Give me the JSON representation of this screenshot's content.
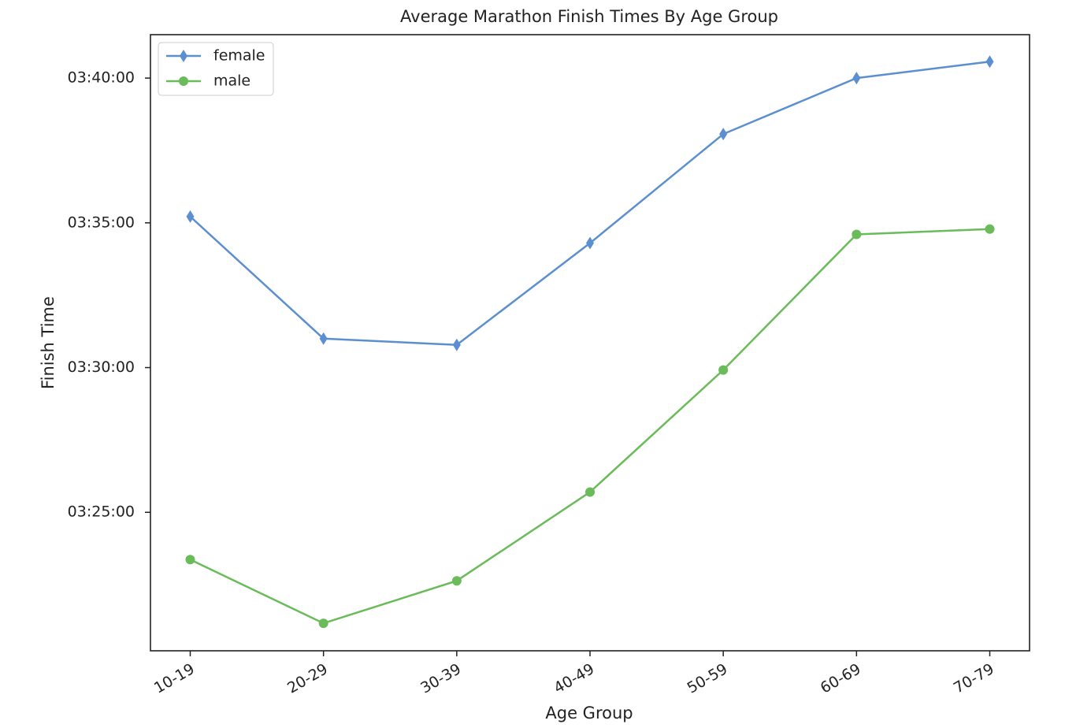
{
  "chart_data": {
    "type": "line",
    "title": "Average Marathon Finish Times By Age Group",
    "x_label": "Age Group",
    "y_label": "Finish Time",
    "categories": [
      "10-19",
      "20-29",
      "30-39",
      "40-49",
      "50-59",
      "60-69",
      "70-79"
    ],
    "series": [
      {
        "name": "female",
        "color": "#5b8fcf",
        "marker": "diamond",
        "values": [
          12913,
          12660,
          12647,
          12858,
          13084,
          13200,
          13234
        ]
      },
      {
        "name": "male",
        "color": "#6abb59",
        "marker": "circle",
        "values": [
          12202,
          12070,
          12158,
          12342,
          12595,
          12876,
          12887
        ]
      }
    ],
    "ylim": [
      12013,
      13290
    ],
    "yticks": [
      {
        "value": 12300,
        "label": "03:25:00"
      },
      {
        "value": 12600,
        "label": "03:30:00"
      },
      {
        "value": 12900,
        "label": "03:35:00"
      },
      {
        "value": 13200,
        "label": "03:40:00"
      }
    ],
    "grid": false,
    "legend": "upper left"
  }
}
